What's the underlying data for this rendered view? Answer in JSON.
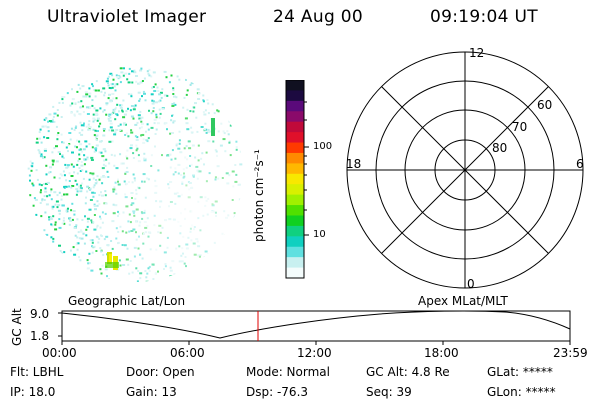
{
  "header": {
    "title": "Ultraviolet Imager",
    "date": "24 Aug 00",
    "time": "09:19:04 UT"
  },
  "colorbar": {
    "unit": "photon cm⁻²s⁻¹",
    "ticks": [
      "100",
      "10"
    ],
    "colors": [
      "#101020",
      "#1c0a40",
      "#5a0a7a",
      "#8a0a6a",
      "#c00a3a",
      "#e0102a",
      "#ff3a00",
      "#ff8a00",
      "#ffb800",
      "#f8e800",
      "#d8f000",
      "#a0f000",
      "#50e000",
      "#10d020",
      "#10d080",
      "#10d0c0",
      "#60e0e0",
      "#c8f0f0",
      "#f4fcfc"
    ]
  },
  "polar": {
    "mlt_labels": {
      "top": "12",
      "left": "18",
      "right": "6",
      "bottom": "0"
    },
    "lat_labels": [
      "60",
      "70",
      "80"
    ]
  },
  "track": {
    "left_title": "Geographic Lat/Lon",
    "right_title": "Apex MLat/MLT",
    "axis_label": "GC Alt",
    "y_ticks": [
      "9.0",
      "1.8"
    ],
    "x_ticks": [
      "00:00",
      "06:00",
      "12:00",
      "18:00",
      "23:59"
    ]
  },
  "info": {
    "flt": "Flt: LBHL",
    "door": "Door: Open",
    "mode": "Mode: Normal",
    "gcalt": "GC Alt: 4.8 Re",
    "glat": "GLat: *****",
    "ip": "IP: 18.0",
    "gain": "Gain: 13",
    "dsp": "Dsp:  -76.3",
    "seq": "Seq: 39",
    "glon": "GLon: *****"
  }
}
